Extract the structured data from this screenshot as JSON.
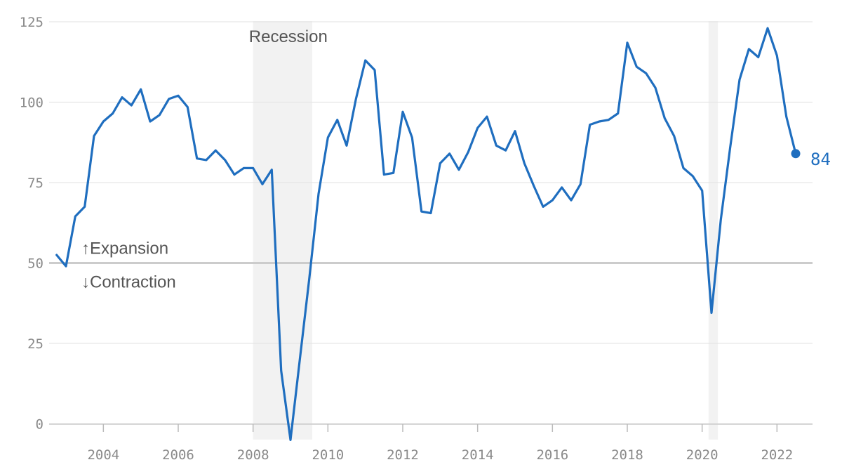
{
  "chart_data": {
    "type": "line",
    "y_ticks": [
      0,
      25,
      50,
      75,
      100,
      125
    ],
    "x_ticks": [
      2004,
      2006,
      2008,
      2010,
      2012,
      2014,
      2016,
      2018,
      2020,
      2022
    ],
    "xlim": [
      2002.55,
      2022.95
    ],
    "ylim": [
      -5,
      127
    ],
    "baseline": 50,
    "grid": true,
    "line_color": "#1f6ebf",
    "recessions": [
      {
        "start": 2008.0,
        "end": 2009.58,
        "label": "Recession"
      },
      {
        "start": 2020.17,
        "end": 2020.42,
        "label": ""
      }
    ],
    "annotations": {
      "expansion": "↑Expansion",
      "contraction": "↓Contraction"
    },
    "end_label": "84",
    "series": [
      {
        "x": [
          2002.75,
          2003.0,
          2003.25,
          2003.5,
          2003.75,
          2004.0,
          2004.25,
          2004.5,
          2004.75,
          2005.0,
          2005.25,
          2005.5,
          2005.75,
          2006.0,
          2006.25,
          2006.5,
          2006.75,
          2007.0,
          2007.25,
          2007.5,
          2007.75,
          2008.0,
          2008.25,
          2008.5,
          2008.75,
          2009.0,
          2009.25,
          2009.5,
          2009.75,
          2010.0,
          2010.25,
          2010.5,
          2010.75,
          2011.0,
          2011.25,
          2011.5,
          2011.75,
          2012.0,
          2012.25,
          2012.5,
          2012.75,
          2013.0,
          2013.25,
          2013.5,
          2013.75,
          2014.0,
          2014.25,
          2014.5,
          2014.75,
          2015.0,
          2015.25,
          2015.5,
          2015.75,
          2016.0,
          2016.25,
          2016.5,
          2016.75,
          2017.0,
          2017.25,
          2017.5,
          2017.75,
          2018.0,
          2018.25,
          2018.5,
          2018.75,
          2019.0,
          2019.25,
          2019.5,
          2019.75,
          2020.0,
          2020.25,
          2020.5,
          2020.75,
          2021.0,
          2021.25,
          2021.5,
          2021.75,
          2022.0,
          2022.25,
          2022.5
        ],
        "values": [
          52.5,
          49,
          64.5,
          67.5,
          89.5,
          94,
          96.5,
          101.5,
          99,
          104,
          94,
          96,
          101,
          102,
          98.5,
          82.5,
          82,
          85,
          82,
          77.5,
          79.5,
          79.5,
          74.5,
          79,
          16.5,
          -5,
          20,
          45,
          71.5,
          89,
          94.5,
          86.5,
          101,
          113,
          110,
          77.5,
          78,
          97,
          89,
          66,
          65.5,
          81,
          84,
          79,
          84.5,
          92,
          95.5,
          86.5,
          85,
          91,
          81,
          74,
          67.5,
          69.5,
          73.5,
          69.5,
          74.5,
          93,
          94,
          94.5,
          96.5,
          118.5,
          111,
          109,
          104.5,
          95,
          89.5,
          79.5,
          77,
          72.5,
          34.5,
          63.5,
          86,
          107,
          116.5,
          114,
          123,
          114.5,
          95.5,
          84
        ]
      }
    ]
  }
}
